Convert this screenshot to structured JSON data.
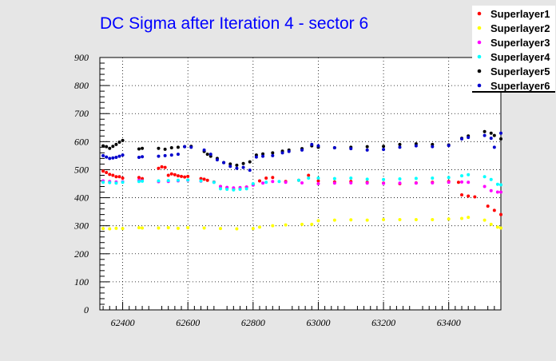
{
  "chart_data": {
    "type": "scatter",
    "title": "DC Sigma after Iteration 4 - sector 6",
    "xlabel": "",
    "ylabel": "",
    "xlim": [
      62330,
      63560
    ],
    "ylim": [
      0,
      900
    ],
    "x_ticks": [
      62400,
      62600,
      62800,
      63000,
      63200,
      63400
    ],
    "y_ticks": [
      0,
      100,
      200,
      300,
      400,
      500,
      600,
      700,
      800,
      900
    ],
    "grid": true,
    "legend_position": "top-right",
    "series": [
      {
        "name": "Superlayer1",
        "color": "#ff0000",
        "points": [
          [
            62340,
            495
          ],
          [
            62350,
            490
          ],
          [
            62360,
            483
          ],
          [
            62370,
            480
          ],
          [
            62380,
            475
          ],
          [
            62390,
            475
          ],
          [
            62400,
            470
          ],
          [
            62450,
            472
          ],
          [
            62460,
            468
          ],
          [
            62510,
            505
          ],
          [
            62520,
            510
          ],
          [
            62530,
            508
          ],
          [
            62540,
            480
          ],
          [
            62550,
            485
          ],
          [
            62560,
            482
          ],
          [
            62570,
            478
          ],
          [
            62580,
            476
          ],
          [
            62590,
            474
          ],
          [
            62600,
            476
          ],
          [
            62640,
            468
          ],
          [
            62650,
            466
          ],
          [
            62660,
            462
          ],
          [
            62680,
            456
          ],
          [
            62700,
            440
          ],
          [
            62720,
            435
          ],
          [
            62740,
            430
          ],
          [
            62760,
            432
          ],
          [
            62780,
            438
          ],
          [
            62800,
            448
          ],
          [
            62820,
            460
          ],
          [
            62840,
            470
          ],
          [
            62860,
            472
          ],
          [
            62900,
            458
          ],
          [
            62940,
            462
          ],
          [
            62970,
            480
          ],
          [
            63000,
            460
          ],
          [
            63050,
            456
          ],
          [
            63100,
            458
          ],
          [
            63150,
            455
          ],
          [
            63200,
            452
          ],
          [
            63250,
            450
          ],
          [
            63300,
            453
          ],
          [
            63350,
            455
          ],
          [
            63400,
            458
          ],
          [
            63430,
            455
          ],
          [
            63440,
            410
          ],
          [
            63460,
            406
          ],
          [
            63480,
            403
          ],
          [
            63520,
            370
          ],
          [
            63540,
            355
          ],
          [
            63560,
            340
          ]
        ]
      },
      {
        "name": "Superlayer2",
        "color": "#ffff00",
        "points": [
          [
            62340,
            290
          ],
          [
            62360,
            289
          ],
          [
            62380,
            291
          ],
          [
            62400,
            290
          ],
          [
            62450,
            293
          ],
          [
            62460,
            292
          ],
          [
            62510,
            292
          ],
          [
            62540,
            293
          ],
          [
            62570,
            291
          ],
          [
            62600,
            293
          ],
          [
            62650,
            292
          ],
          [
            62700,
            290
          ],
          [
            62750,
            289
          ],
          [
            62800,
            290
          ],
          [
            62820,
            295
          ],
          [
            62860,
            300
          ],
          [
            62900,
            303
          ],
          [
            62950,
            305
          ],
          [
            62980,
            305
          ],
          [
            63000,
            318
          ],
          [
            63050,
            320
          ],
          [
            63100,
            321
          ],
          [
            63150,
            320
          ],
          [
            63200,
            322
          ],
          [
            63250,
            322
          ],
          [
            63300,
            322
          ],
          [
            63350,
            322
          ],
          [
            63400,
            324
          ],
          [
            63440,
            326
          ],
          [
            63460,
            330
          ],
          [
            63510,
            320
          ],
          [
            63530,
            305
          ],
          [
            63550,
            295
          ],
          [
            63560,
            292
          ]
        ]
      },
      {
        "name": "Superlayer3",
        "color": "#ff00ff",
        "points": [
          [
            62340,
            460
          ],
          [
            62360,
            458
          ],
          [
            62380,
            456
          ],
          [
            62400,
            457
          ],
          [
            62450,
            462
          ],
          [
            62460,
            460
          ],
          [
            62510,
            457
          ],
          [
            62540,
            458
          ],
          [
            62570,
            460
          ],
          [
            62600,
            462
          ],
          [
            62640,
            459
          ],
          [
            62680,
            455
          ],
          [
            62700,
            440
          ],
          [
            62720,
            437
          ],
          [
            62740,
            435
          ],
          [
            62760,
            436
          ],
          [
            62780,
            438
          ],
          [
            62800,
            445
          ],
          [
            62830,
            452
          ],
          [
            62860,
            458
          ],
          [
            62900,
            455
          ],
          [
            62950,
            453
          ],
          [
            63000,
            450
          ],
          [
            63050,
            452
          ],
          [
            63100,
            453
          ],
          [
            63150,
            452
          ],
          [
            63200,
            451
          ],
          [
            63250,
            452
          ],
          [
            63300,
            452
          ],
          [
            63350,
            453
          ],
          [
            63400,
            455
          ],
          [
            63440,
            456
          ],
          [
            63460,
            455
          ],
          [
            63510,
            440
          ],
          [
            63530,
            425
          ],
          [
            63550,
            420
          ],
          [
            63560,
            420
          ]
        ]
      },
      {
        "name": "Superlayer4",
        "color": "#00ffff",
        "points": [
          [
            62340,
            455
          ],
          [
            62360,
            454
          ],
          [
            62380,
            452
          ],
          [
            62400,
            455
          ],
          [
            62450,
            458
          ],
          [
            62460,
            459
          ],
          [
            62510,
            460
          ],
          [
            62540,
            461
          ],
          [
            62570,
            462
          ],
          [
            62600,
            463
          ],
          [
            62640,
            460
          ],
          [
            62680,
            455
          ],
          [
            62700,
            432
          ],
          [
            62720,
            430
          ],
          [
            62740,
            428
          ],
          [
            62760,
            430
          ],
          [
            62780,
            432
          ],
          [
            62800,
            450
          ],
          [
            62840,
            455
          ],
          [
            62880,
            458
          ],
          [
            62940,
            462
          ],
          [
            62970,
            470
          ],
          [
            63000,
            470
          ],
          [
            63050,
            468
          ],
          [
            63100,
            470
          ],
          [
            63150,
            466
          ],
          [
            63200,
            465
          ],
          [
            63250,
            467
          ],
          [
            63300,
            469
          ],
          [
            63350,
            470
          ],
          [
            63400,
            472
          ],
          [
            63440,
            478
          ],
          [
            63460,
            482
          ],
          [
            63510,
            475
          ],
          [
            63530,
            465
          ],
          [
            63550,
            448
          ],
          [
            63560,
            446
          ]
        ]
      },
      {
        "name": "Superlayer5",
        "color": "#000000",
        "points": [
          [
            62340,
            585
          ],
          [
            62350,
            582
          ],
          [
            62360,
            576
          ],
          [
            62370,
            583
          ],
          [
            62380,
            590
          ],
          [
            62390,
            598
          ],
          [
            62400,
            604
          ],
          [
            62450,
            574
          ],
          [
            62460,
            576
          ],
          [
            62510,
            576
          ],
          [
            62530,
            573
          ],
          [
            62550,
            578
          ],
          [
            62570,
            580
          ],
          [
            62590,
            582
          ],
          [
            62610,
            583
          ],
          [
            62650,
            565
          ],
          [
            62660,
            555
          ],
          [
            62670,
            548
          ],
          [
            62690,
            540
          ],
          [
            62710,
            525
          ],
          [
            62730,
            520
          ],
          [
            62750,
            516
          ],
          [
            62770,
            522
          ],
          [
            62790,
            528
          ],
          [
            62810,
            552
          ],
          [
            62830,
            556
          ],
          [
            62860,
            560
          ],
          [
            62890,
            566
          ],
          [
            62910,
            570
          ],
          [
            62950,
            575
          ],
          [
            62980,
            585
          ],
          [
            63000,
            580
          ],
          [
            63050,
            578
          ],
          [
            63100,
            580
          ],
          [
            63150,
            582
          ],
          [
            63200,
            583
          ],
          [
            63250,
            590
          ],
          [
            63300,
            592
          ],
          [
            63350,
            590
          ],
          [
            63400,
            588
          ],
          [
            63440,
            612
          ],
          [
            63460,
            620
          ],
          [
            63510,
            636
          ],
          [
            63530,
            630
          ],
          [
            63540,
            622
          ],
          [
            63560,
            610
          ]
        ]
      },
      {
        "name": "Superlayer6",
        "color": "#0000cc",
        "points": [
          [
            62340,
            550
          ],
          [
            62350,
            545
          ],
          [
            62360,
            540
          ],
          [
            62370,
            542
          ],
          [
            62380,
            544
          ],
          [
            62390,
            548
          ],
          [
            62400,
            552
          ],
          [
            62450,
            544
          ],
          [
            62460,
            546
          ],
          [
            62510,
            548
          ],
          [
            62530,
            550
          ],
          [
            62550,
            552
          ],
          [
            62570,
            555
          ],
          [
            62590,
            582
          ],
          [
            62610,
            580
          ],
          [
            62650,
            570
          ],
          [
            62670,
            555
          ],
          [
            62690,
            535
          ],
          [
            62710,
            525
          ],
          [
            62730,
            512
          ],
          [
            62750,
            505
          ],
          [
            62770,
            508
          ],
          [
            62790,
            498
          ],
          [
            62810,
            545
          ],
          [
            62830,
            548
          ],
          [
            62860,
            550
          ],
          [
            62890,
            560
          ],
          [
            62910,
            565
          ],
          [
            62950,
            570
          ],
          [
            62980,
            590
          ],
          [
            63000,
            585
          ],
          [
            63050,
            578
          ],
          [
            63100,
            575
          ],
          [
            63150,
            570
          ],
          [
            63200,
            572
          ],
          [
            63250,
            580
          ],
          [
            63300,
            585
          ],
          [
            63350,
            582
          ],
          [
            63400,
            586
          ],
          [
            63440,
            610
          ],
          [
            63460,
            615
          ],
          [
            63510,
            622
          ],
          [
            63530,
            612
          ],
          [
            63540,
            580
          ],
          [
            63560,
            630
          ]
        ]
      }
    ]
  }
}
